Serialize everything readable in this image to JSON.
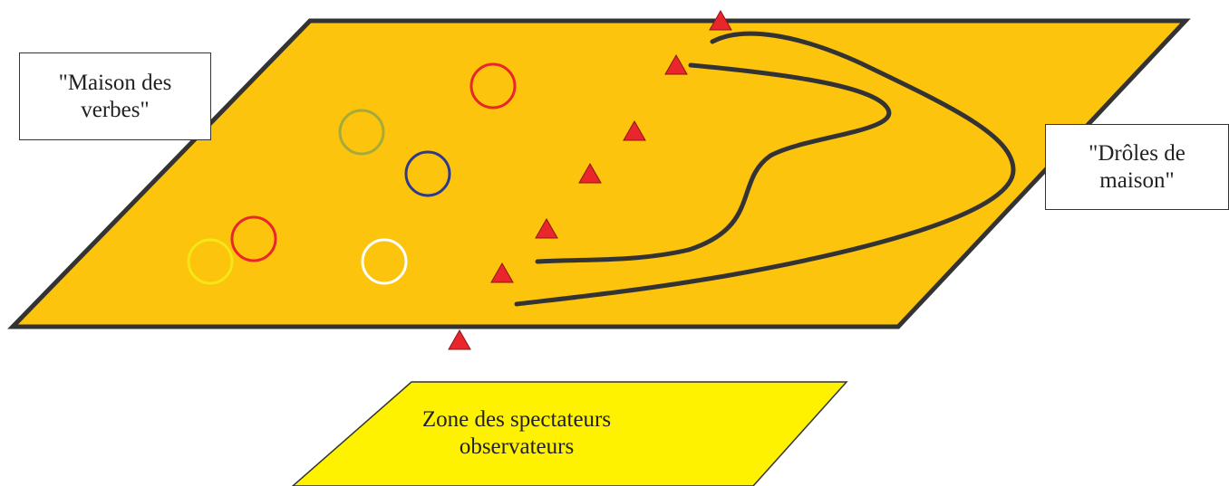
{
  "labels": {
    "maison_des_verbes": "\"Maison des\nverbes\"",
    "droles_de_maison": "\"Drôles de\nmaison\"",
    "zone_spectateurs": "Zone des spectateurs\nobservateurs"
  },
  "colors": {
    "field": "#FCC40C",
    "field_border": "#333333",
    "spectator_zone": "#FFF200",
    "cone": "#E8262B",
    "path_line": "#333333",
    "hoops": [
      "#E8262B",
      "#A7A93B",
      "#2E3A8C",
      "#E8262B",
      "#F5E617",
      "#FFFFFF"
    ]
  },
  "legend_items": {
    "hoop_icon": "circle-hoop-icon",
    "cone_icon": "triangle-cone-icon"
  }
}
